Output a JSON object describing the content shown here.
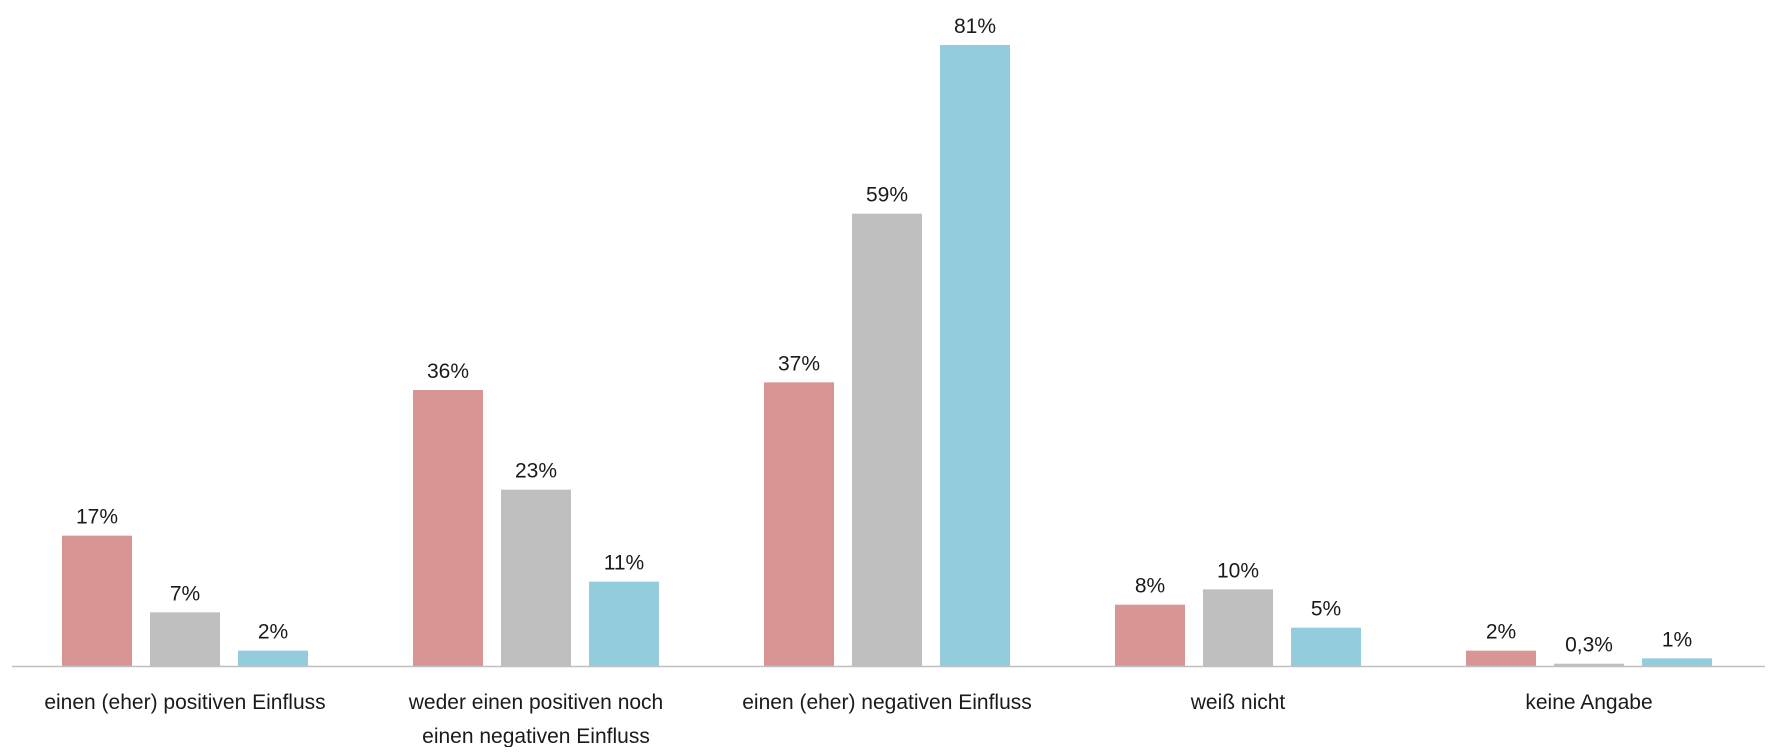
{
  "chart_data": {
    "type": "bar",
    "title": "",
    "xlabel": "",
    "ylabel": "",
    "ylim": [
      0,
      81
    ],
    "grid": false,
    "legend": "none",
    "categories": [
      [
        "einen (eher) positiven Einfluss"
      ],
      [
        "weder einen positiven noch",
        "einen negativen Einfluss"
      ],
      [
        "einen (eher) negativen Einfluss"
      ],
      [
        "weiß nicht"
      ],
      [
        "keine Angabe"
      ]
    ],
    "series": [
      {
        "color": "#d99594",
        "values": [
          17,
          36,
          37,
          8,
          2
        ],
        "labels": [
          "17%",
          "36%",
          "37%",
          "8%",
          "2%"
        ]
      },
      {
        "color": "#bfbfbf",
        "values": [
          7,
          23,
          59,
          10,
          0.3
        ],
        "labels": [
          "7%",
          "23%",
          "59%",
          "10%",
          "0,3%"
        ]
      },
      {
        "color": "#93cddd",
        "values": [
          2,
          11,
          81,
          5,
          1
        ],
        "labels": [
          "2%",
          "11%",
          "81%",
          "5%",
          "1%"
        ]
      }
    ],
    "axis_color": "#bfbfbf"
  }
}
